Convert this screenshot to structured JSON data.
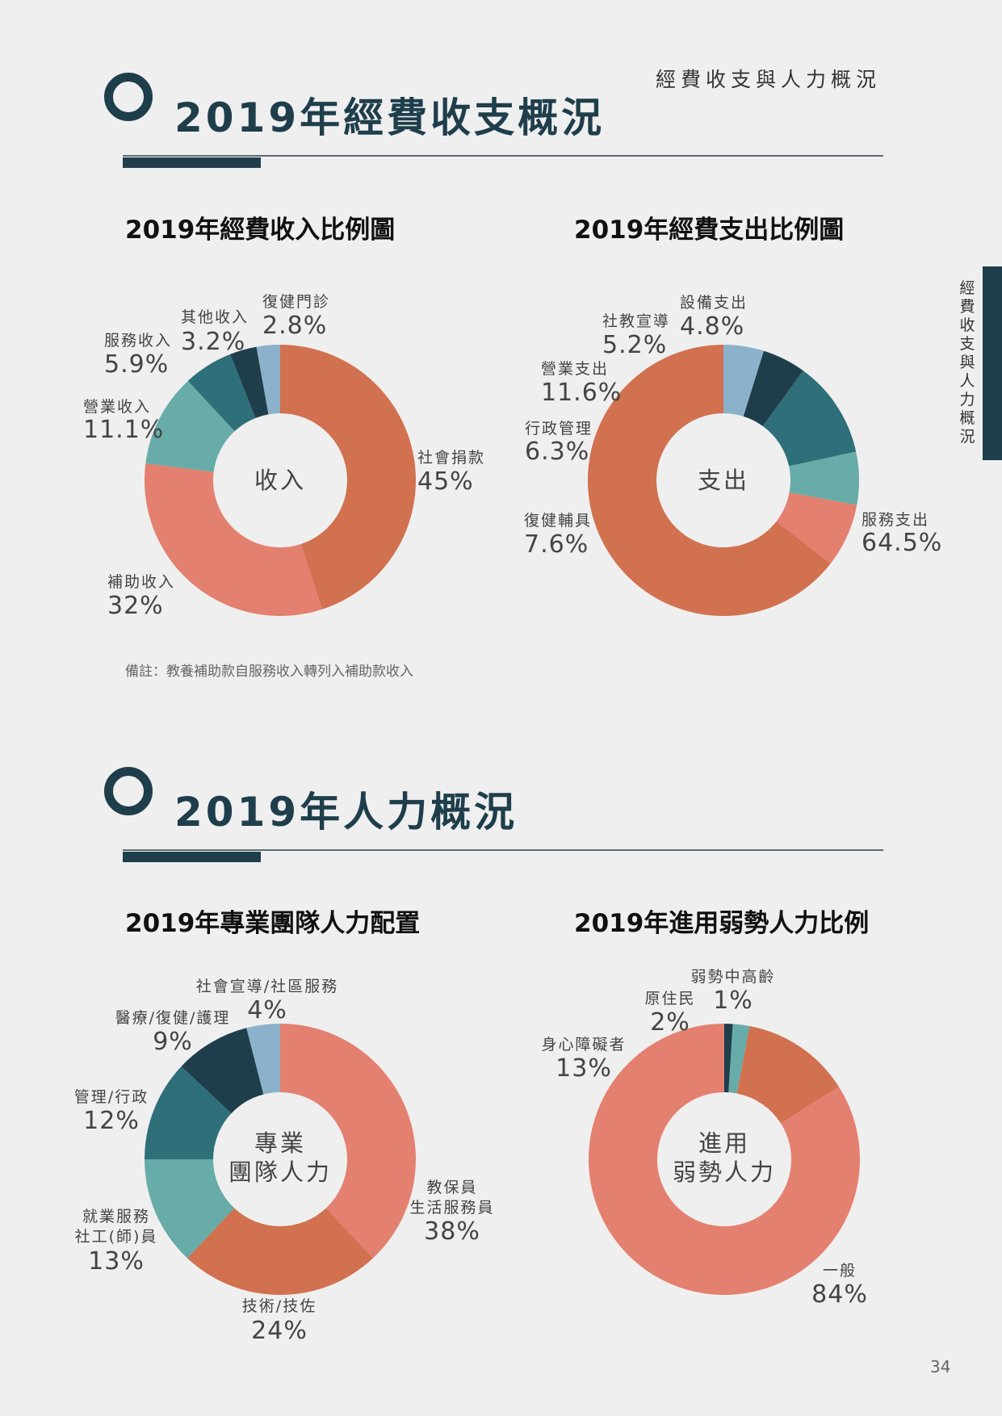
{
  "header": {
    "section_label": "經費收支與人力概況"
  },
  "side_tab": {
    "text": "經費收支與人力概況"
  },
  "sections": {
    "finance": {
      "title": "2019年經費收支概況"
    },
    "staff": {
      "title": "2019年人力概況"
    }
  },
  "note": "備註：教養補助款自服務收入轉列入補助款收入",
  "page_number": "34",
  "colors": {
    "dark_teal": "#1f3e4b",
    "teal": "#2e6f7a",
    "light_teal": "#67aca8",
    "orange": "#d17150",
    "salmon": "#e4806f",
    "light_blue": "#8cb2cb"
  },
  "chart_data": [
    {
      "type": "pie",
      "variant": "donut",
      "title": "2019年經費收入比例圖",
      "center_label": [
        "收入"
      ],
      "slices": [
        {
          "label": [
            "社會捐款"
          ],
          "value": 45,
          "value_label": "45%",
          "color": "#d17150"
        },
        {
          "label": [
            "補助收入"
          ],
          "value": 32,
          "value_label": "32%",
          "color": "#e4806f"
        },
        {
          "label": [
            "營業收入"
          ],
          "value": 11.1,
          "value_label": "11.1%",
          "color": "#67aca8"
        },
        {
          "label": [
            "服務收入"
          ],
          "value": 5.9,
          "value_label": "5.9%",
          "color": "#2e6f7a"
        },
        {
          "label": [
            "其他收入"
          ],
          "value": 3.2,
          "value_label": "3.2%",
          "color": "#1f3e4b"
        },
        {
          "label": [
            "復健門診"
          ],
          "value": 2.8,
          "value_label": "2.8%",
          "color": "#8cb2cb"
        }
      ]
    },
    {
      "type": "pie",
      "variant": "donut",
      "title": "2019年經費支出比例圖",
      "center_label": [
        "支出"
      ],
      "slices": [
        {
          "label": [
            "服務支出"
          ],
          "value": 64.5,
          "value_label": "64.5%",
          "color": "#d17150"
        },
        {
          "label": [
            "復健輔具"
          ],
          "value": 7.6,
          "value_label": "7.6%",
          "color": "#e4806f"
        },
        {
          "label": [
            "行政管理"
          ],
          "value": 6.3,
          "value_label": "6.3%",
          "color": "#67aca8"
        },
        {
          "label": [
            "營業支出"
          ],
          "value": 11.6,
          "value_label": "11.6%",
          "color": "#2e6f7a"
        },
        {
          "label": [
            "社教宣導"
          ],
          "value": 5.2,
          "value_label": "5.2%",
          "color": "#1f3e4b"
        },
        {
          "label": [
            "設備支出"
          ],
          "value": 4.8,
          "value_label": "4.8%",
          "color": "#8cb2cb"
        }
      ]
    },
    {
      "type": "pie",
      "variant": "donut",
      "title": "2019年專業團隊人力配置",
      "center_label": [
        "專業",
        "團隊人力"
      ],
      "slices": [
        {
          "label": [
            "教保員",
            "生活服務員"
          ],
          "value": 38,
          "value_label": "38%",
          "color": "#e4806f"
        },
        {
          "label": [
            "技術/技佐"
          ],
          "value": 24,
          "value_label": "24%",
          "color": "#d17150"
        },
        {
          "label": [
            "就業服務",
            "社工(師)員"
          ],
          "value": 13,
          "value_label": "13%",
          "color": "#67aca8"
        },
        {
          "label": [
            "管理/行政"
          ],
          "value": 12,
          "value_label": "12%",
          "color": "#2e6f7a"
        },
        {
          "label": [
            "醫療/復健/護理"
          ],
          "value": 9,
          "value_label": "9%",
          "color": "#1f3e4b"
        },
        {
          "label": [
            "社會宣導/社區服務"
          ],
          "value": 4,
          "value_label": "4%",
          "color": "#8cb2cb"
        }
      ]
    },
    {
      "type": "pie",
      "variant": "donut",
      "title": "2019年進用弱勢人力比例",
      "center_label": [
        "進用",
        "弱勢人力"
      ],
      "slices": [
        {
          "label": [
            "一般"
          ],
          "value": 84,
          "value_label": "84%",
          "color": "#e4806f"
        },
        {
          "label": [
            "身心障礙者"
          ],
          "value": 13,
          "value_label": "13%",
          "color": "#d17150"
        },
        {
          "label": [
            "原住民"
          ],
          "value": 2,
          "value_label": "2%",
          "color": "#67aca8"
        },
        {
          "label": [
            "弱勢中高齡"
          ],
          "value": 1,
          "value_label": "1%",
          "color": "#1f3e4b"
        }
      ]
    }
  ]
}
